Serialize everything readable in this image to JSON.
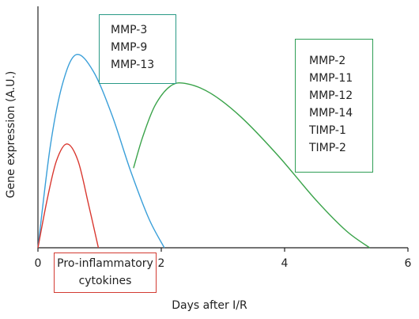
{
  "chart_data": {
    "type": "line",
    "xlabel": "Days after I/R",
    "ylabel": "Gene expression (A.U.)",
    "xlim": [
      0,
      6
    ],
    "xticks": [
      "0",
      "2",
      "4",
      "6"
    ],
    "series": [
      {
        "color": "#3a9fd9",
        "x": [
          0.0,
          0.2,
          0.4,
          0.62,
          0.9,
          1.2,
          1.5,
          1.8,
          2.05
        ],
        "y": [
          0.0,
          0.42,
          0.68,
          0.8,
          0.73,
          0.55,
          0.32,
          0.12,
          0.0
        ]
      },
      {
        "color": "#d9372f",
        "x": [
          0.0,
          0.15,
          0.3,
          0.47,
          0.65,
          0.82,
          0.98
        ],
        "y": [
          0.0,
          0.2,
          0.36,
          0.43,
          0.36,
          0.18,
          0.0
        ]
      },
      {
        "color": "#3aa34a",
        "x": [
          1.55,
          1.7,
          1.9,
          2.15,
          2.4,
          2.8,
          3.3,
          3.9,
          4.5,
          5.0,
          5.38
        ],
        "y": [
          0.33,
          0.46,
          0.59,
          0.67,
          0.68,
          0.64,
          0.54,
          0.38,
          0.2,
          0.07,
          0.0
        ]
      }
    ]
  },
  "labels": {
    "blue_box": [
      "MMP-3",
      "MMP-9",
      "MMP-13"
    ],
    "green_box": [
      "MMP-2",
      "MMP-11",
      "MMP-12",
      "MMP-14",
      "TIMP-1",
      "TIMP-2"
    ],
    "red_box": [
      "Pro-inflammatory",
      "cytokines"
    ]
  },
  "colors": {
    "axis": "#222222",
    "blue_box_border": "#2a9a86",
    "green_box_border": "#2f9e55",
    "red_box_border": "#d33b32"
  }
}
